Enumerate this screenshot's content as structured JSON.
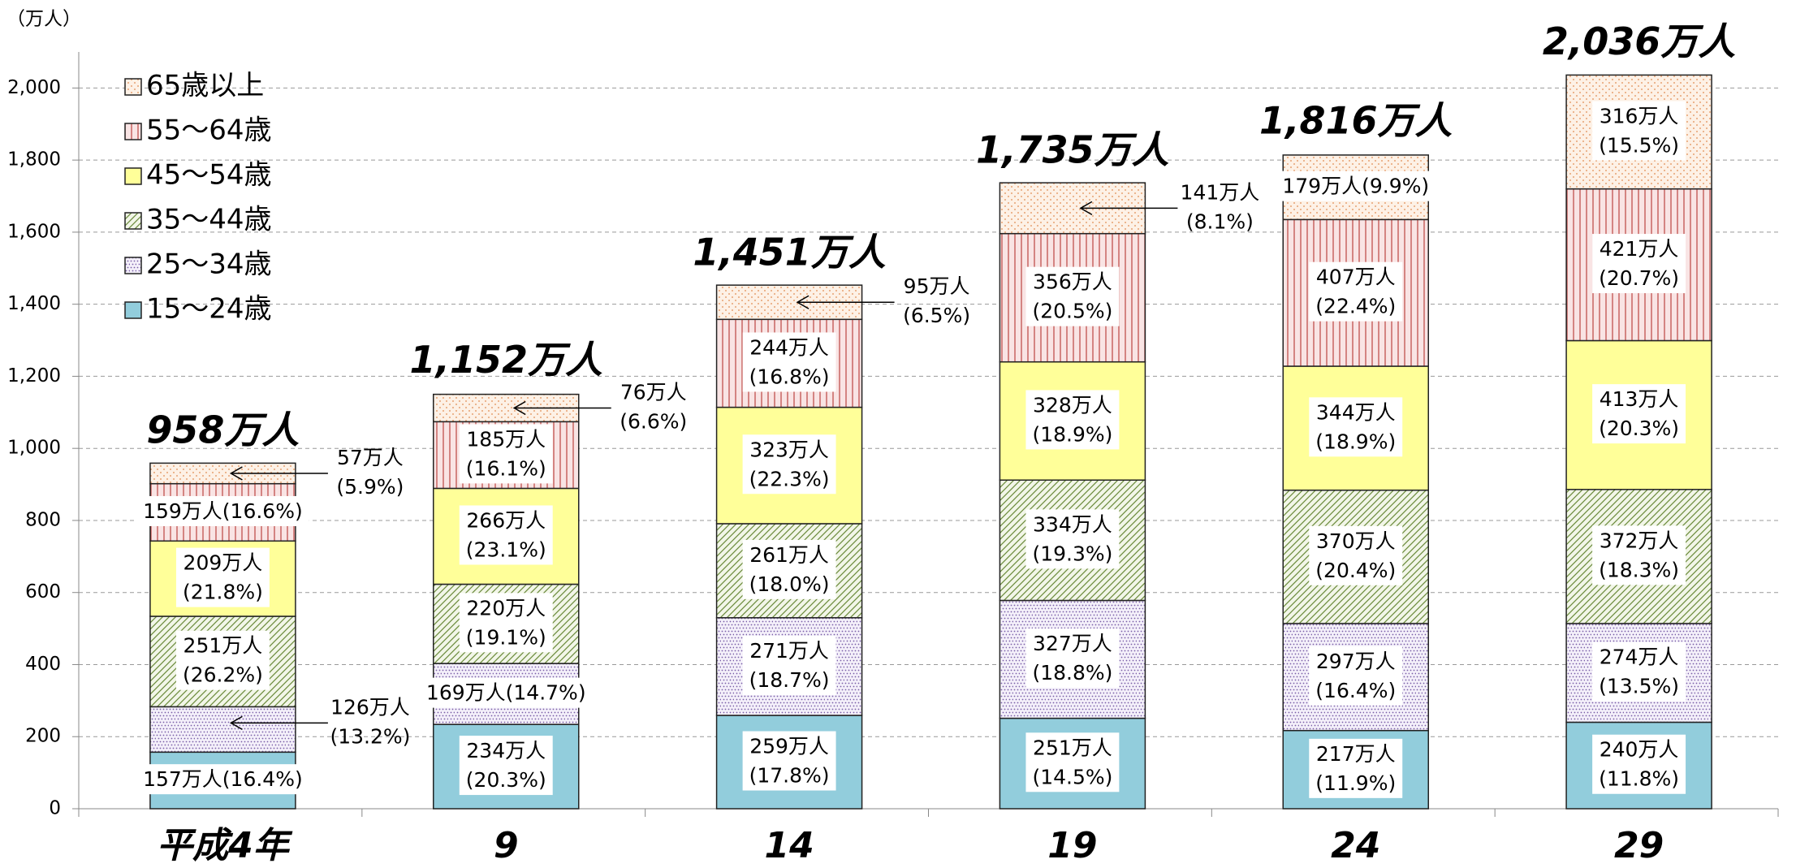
{
  "chart_data": {
    "type": "stacked_bar",
    "y_axis_label": "（万人）",
    "categories": [
      "平成4年",
      "9",
      "14",
      "19",
      "24",
      "29"
    ],
    "ylim": [
      0,
      2100
    ],
    "yticks": [
      0,
      200,
      400,
      600,
      800,
      {
        "value": 1000,
        "label": "1,000"
      },
      {
        "value": 1200,
        "label": "1,200"
      },
      {
        "value": 1400,
        "label": "1,400"
      },
      {
        "value": 1600,
        "label": "1,600"
      },
      {
        "value": 1800,
        "label": "1,800"
      },
      {
        "value": 2000,
        "label": "2,000"
      }
    ],
    "grid": true,
    "legend": "upper left",
    "series": [
      {
        "name": "15～24歳",
        "color": "#92cddc",
        "values": [
          157,
          234,
          259,
          251,
          217,
          240
        ],
        "value_labels": [
          "157万人",
          "234万人",
          "259万人",
          "251万人",
          "217万人",
          "240万人"
        ],
        "pct_labels": [
          "(16.4%)",
          "(20.3%)",
          "(17.8%)",
          "(14.5%)",
          "(11.9%)",
          "(11.8%)"
        ]
      },
      {
        "name": "25～34歳",
        "color": "#f4f0fa",
        "values": [
          126,
          169,
          271,
          327,
          297,
          274
        ],
        "value_labels": [
          "126万人",
          "169万人",
          "271万人",
          "327万人",
          "297万人",
          "274万人"
        ],
        "pct_labels": [
          "(13.2%)",
          "(14.7%)",
          "(18.7%)",
          "(18.8%)",
          "(16.4%)",
          "(13.5%)"
        ]
      },
      {
        "name": "35～44歳",
        "color": "#f2f6e8",
        "values": [
          251,
          220,
          261,
          334,
          370,
          372
        ],
        "value_labels": [
          "251万人",
          "220万人",
          "261万人",
          "334万人",
          "370万人",
          "372万人"
        ],
        "pct_labels": [
          "(26.2%)",
          "(19.1%)",
          "(18.0%)",
          "(19.3%)",
          "(20.4%)",
          "(18.3%)"
        ]
      },
      {
        "name": "45～54歳",
        "color": "#ffff99",
        "values": [
          209,
          266,
          323,
          328,
          344,
          413
        ],
        "value_labels": [
          "209万人",
          "266万人",
          "323万人",
          "328万人",
          "344万人",
          "413万人"
        ],
        "pct_labels": [
          "(21.8%)",
          "(23.1%)",
          "(22.3%)",
          "(18.9%)",
          "(18.9%)",
          "(20.3%)"
        ]
      },
      {
        "name": "55～64歳",
        "color": "#f9e4e4",
        "values": [
          159,
          185,
          244,
          356,
          407,
          421
        ],
        "value_labels": [
          "159万人",
          "185万人",
          "244万人",
          "356万人",
          "407万人",
          "421万人"
        ],
        "pct_labels": [
          "(16.6%)",
          "(16.1%)",
          "(16.8%)",
          "(20.5%)",
          "(22.4%)",
          "(20.7%)"
        ]
      },
      {
        "name": "65歳以上",
        "color": "#fdf1e6",
        "values": [
          57,
          76,
          95,
          141,
          179,
          316
        ],
        "value_labels": [
          "57万人",
          "76万人",
          "95万人",
          "141万人",
          "179万人",
          "316万人"
        ],
        "pct_labels": [
          "(5.9%)",
          "(6.6%)",
          "(6.5%)",
          "(8.1%)",
          "(9.9%)",
          "(15.5%)"
        ]
      }
    ],
    "totals": [
      958,
      1152,
      1451,
      1735,
      1816,
      2036
    ],
    "total_labels": [
      "958万人",
      "1,152万人",
      "1,451万人",
      "1,735万人",
      "1,816万人",
      "2,036万人"
    ]
  }
}
